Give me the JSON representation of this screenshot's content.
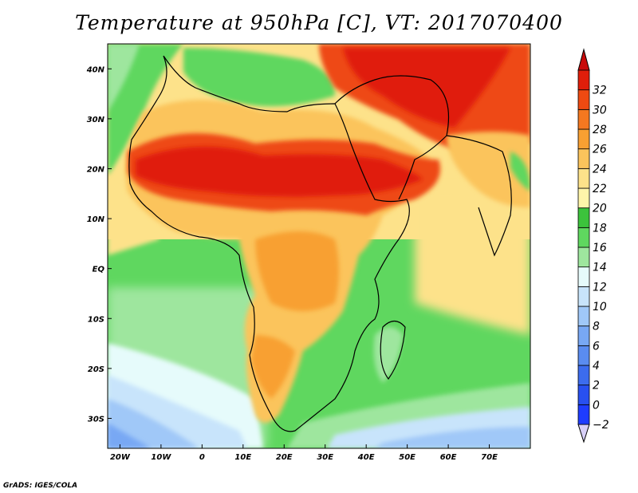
{
  "title": "Temperature at 950hPa [C], VT: 2017070400",
  "credit": "GrADS: IGES/COLA",
  "map": {
    "lon_range": [
      -23,
      80
    ],
    "lat_range": [
      -36,
      45
    ],
    "lon_ticks": [
      {
        "v": -20,
        "label": "20W"
      },
      {
        "v": -10,
        "label": "10W"
      },
      {
        "v": 0,
        "label": "0"
      },
      {
        "v": 10,
        "label": "10E"
      },
      {
        "v": 20,
        "label": "20E"
      },
      {
        "v": 30,
        "label": "30E"
      },
      {
        "v": 40,
        "label": "40E"
      },
      {
        "v": 50,
        "label": "50E"
      },
      {
        "v": 60,
        "label": "60E"
      },
      {
        "v": 70,
        "label": "70E"
      }
    ],
    "lat_ticks": [
      {
        "v": 40,
        "label": "40N"
      },
      {
        "v": 30,
        "label": "30N"
      },
      {
        "v": 20,
        "label": "20N"
      },
      {
        "v": 10,
        "label": "10N"
      },
      {
        "v": 0,
        "label": "EQ"
      },
      {
        "v": -10,
        "label": "10S"
      },
      {
        "v": -20,
        "label": "20S"
      },
      {
        "v": -30,
        "label": "30S"
      }
    ]
  },
  "colorbar": {
    "levels": [
      -2,
      0,
      2,
      4,
      6,
      8,
      10,
      12,
      14,
      16,
      18,
      20,
      22,
      24,
      26,
      28,
      30,
      32
    ],
    "colors": [
      "#1e3cff",
      "#2850f0",
      "#3c6cee",
      "#5a8cf0",
      "#78a8f4",
      "#a0c8f8",
      "#c8e4fb",
      "#e6fbfb",
      "#9ee69e",
      "#5fd75f",
      "#3cc33c",
      "#fff5aa",
      "#fde28a",
      "#fbc45c",
      "#f8a032",
      "#f47820",
      "#ee4a12",
      "#e01e0a"
    ],
    "under_color": "#d8d0f8",
    "over_color": "#c80a0a"
  }
}
